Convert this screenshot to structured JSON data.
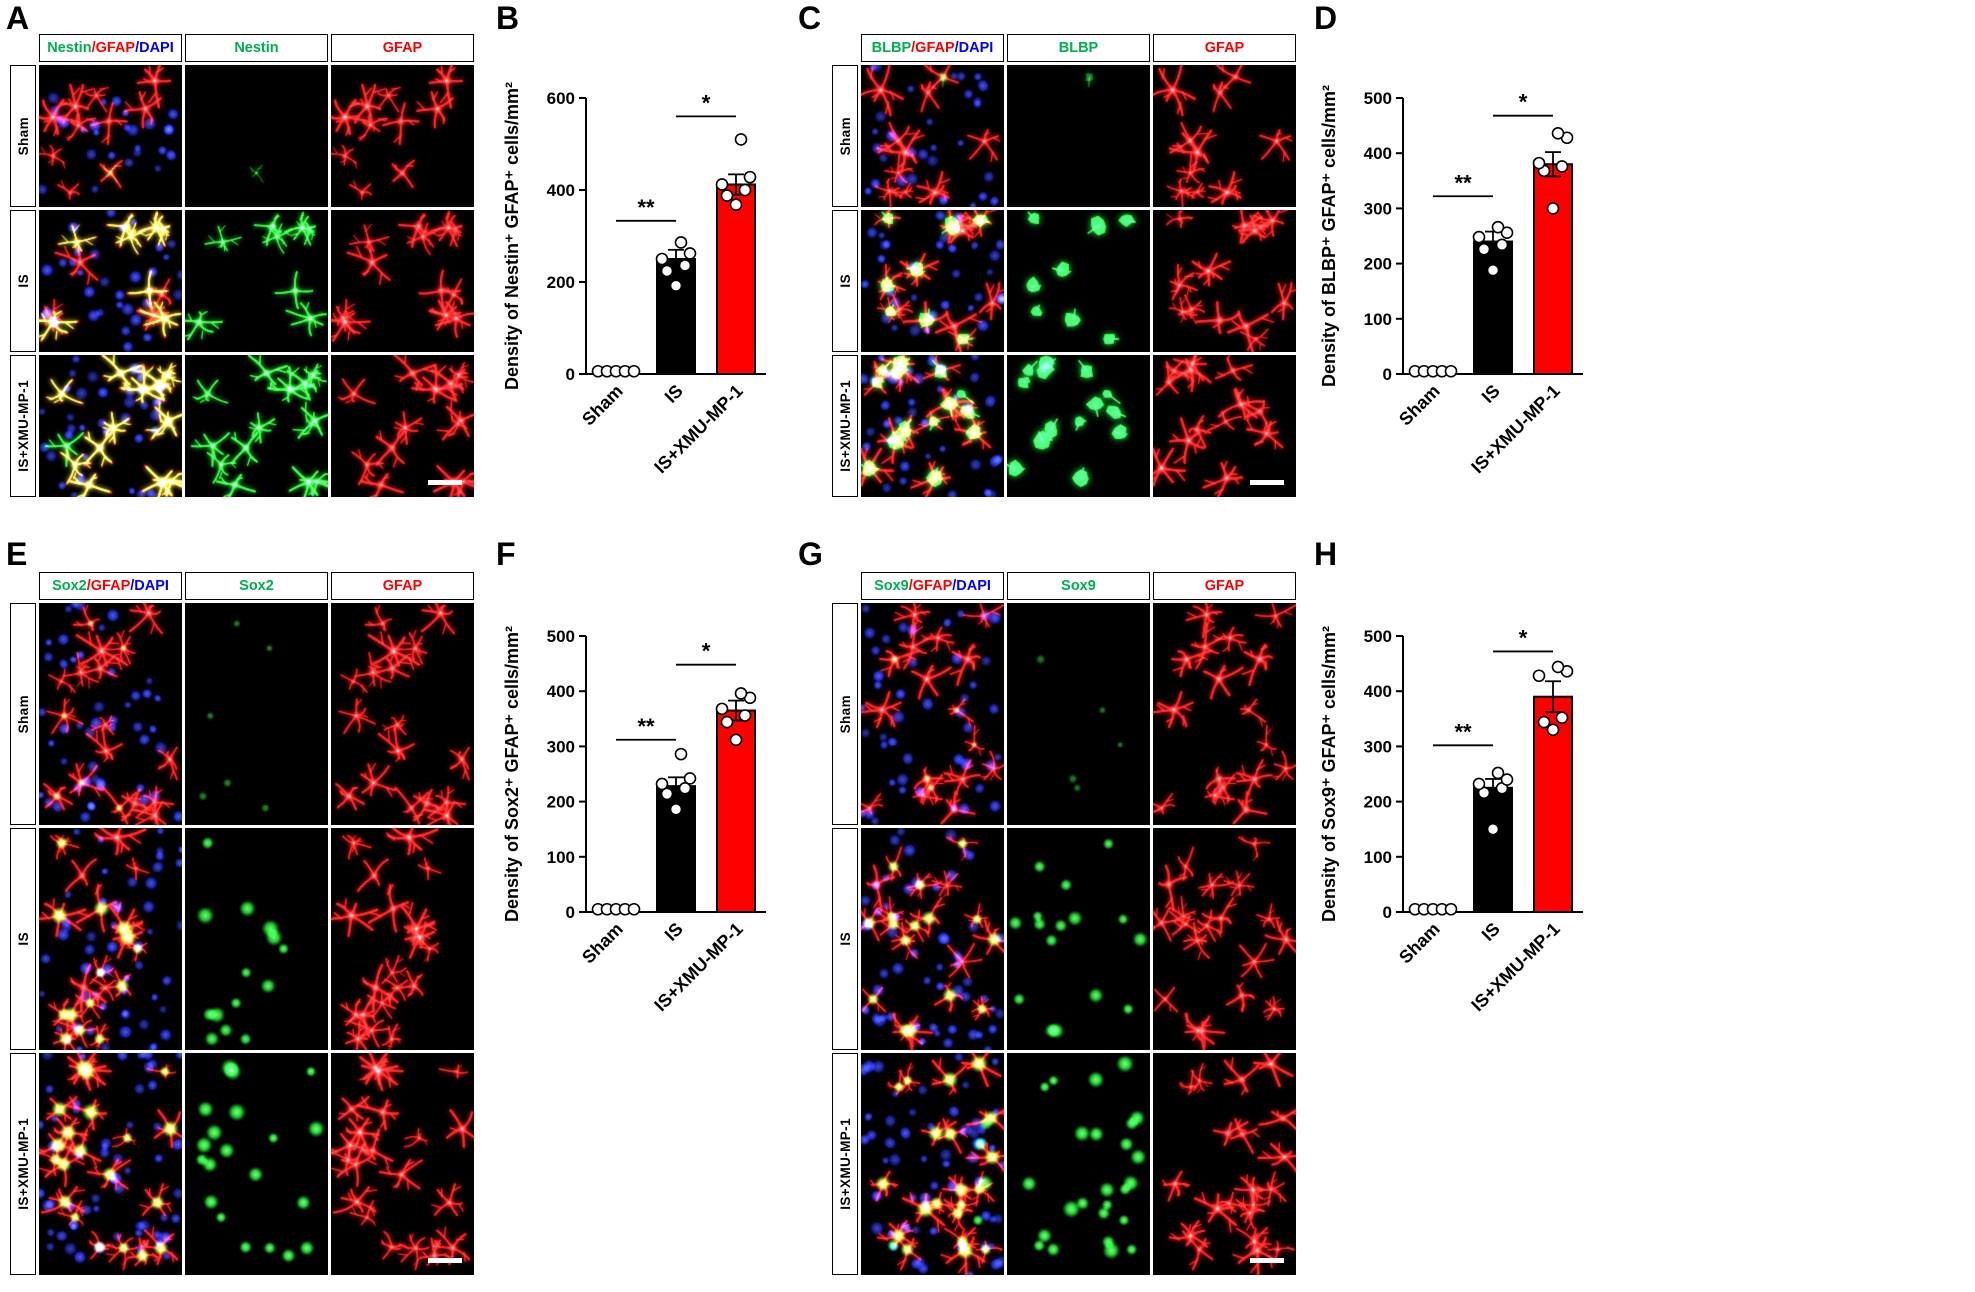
{
  "panels": [
    {
      "label": "A",
      "kind": "microscopy",
      "marker": "Nestin",
      "green_style": "stellate",
      "col_headers": [
        {
          "segments": [
            {
              "text": "Nestin",
              "color": "#00B050"
            },
            {
              "text": "/GFAP",
              "color": "#FF0000"
            },
            {
              "text": "/DAPI",
              "color": "#0000FF"
            }
          ]
        },
        {
          "segments": [
            {
              "text": "Nestin",
              "color": "#00B050"
            }
          ]
        },
        {
          "segments": [
            {
              "text": "GFAP",
              "color": "#FF0000"
            }
          ]
        }
      ],
      "row_labels": [
        "Sham",
        "IS",
        "IS+XMU-MP-1"
      ]
    },
    {
      "label": "B",
      "kind": "chart",
      "chart_index": 0
    },
    {
      "label": "C",
      "kind": "microscopy",
      "marker": "BLBP",
      "green_style": "blob",
      "col_headers": [
        {
          "segments": [
            {
              "text": "BLBP",
              "color": "#00B050"
            },
            {
              "text": "/GFAP",
              "color": "#FF0000"
            },
            {
              "text": "/DAPI",
              "color": "#0000FF"
            }
          ]
        },
        {
          "segments": [
            {
              "text": "BLBP",
              "color": "#00B050"
            }
          ]
        },
        {
          "segments": [
            {
              "text": "GFAP",
              "color": "#FF0000"
            }
          ]
        }
      ],
      "row_labels": [
        "Sham",
        "IS",
        "IS+XMU-MP-1"
      ]
    },
    {
      "label": "D",
      "kind": "chart",
      "chart_index": 1
    },
    {
      "label": "E",
      "kind": "microscopy",
      "marker": "Sox2",
      "green_style": "dot",
      "col_headers": [
        {
          "segments": [
            {
              "text": "Sox2",
              "color": "#00B050"
            },
            {
              "text": "/GFAP",
              "color": "#FF0000"
            },
            {
              "text": "/DAPI",
              "color": "#0000FF"
            }
          ]
        },
        {
          "segments": [
            {
              "text": "Sox2",
              "color": "#00B050"
            }
          ]
        },
        {
          "segments": [
            {
              "text": "GFAP",
              "color": "#FF0000"
            }
          ]
        }
      ],
      "row_labels": [
        "Sham",
        "IS",
        "IS+XMU-MP-1"
      ]
    },
    {
      "label": "F",
      "kind": "chart",
      "chart_index": 2
    },
    {
      "label": "G",
      "kind": "microscopy",
      "marker": "Sox9",
      "green_style": "dot",
      "col_headers": [
        {
          "segments": [
            {
              "text": "Sox9",
              "color": "#00B050"
            },
            {
              "text": "/GFAP",
              "color": "#FF0000"
            },
            {
              "text": "/DAPI",
              "color": "#0000FF"
            }
          ]
        },
        {
          "segments": [
            {
              "text": "Sox9",
              "color": "#00B050"
            }
          ]
        },
        {
          "segments": [
            {
              "text": "GFAP",
              "color": "#FF0000"
            }
          ]
        }
      ],
      "row_labels": [
        "Sham",
        "IS",
        "IS+XMU-MP-1"
      ]
    },
    {
      "label": "H",
      "kind": "chart",
      "chart_index": 3
    }
  ],
  "chart_data": [
    {
      "id": "B",
      "type": "bar",
      "categories": [
        "Sham",
        "IS",
        "IS+XMU-MP-1"
      ],
      "values": [
        8,
        250,
        412
      ],
      "errors": [
        3,
        20,
        22
      ],
      "points": [
        [
          6,
          6,
          6,
          6,
          6
        ],
        [
          192,
          224,
          236,
          250,
          262,
          286
        ],
        [
          368,
          388,
          400,
          412,
          428,
          510
        ]
      ],
      "bar_colors": [
        "#FFFFFF",
        "#000000",
        "#FF0000"
      ],
      "ylabel": "Density of Nestin⁺ GFAP⁺ cells/mm²",
      "ylim": [
        0,
        600
      ],
      "yticks": [
        0,
        200,
        400,
        600
      ],
      "significance": [
        {
          "a": 0,
          "b": 1,
          "label": "**",
          "y": 333
        },
        {
          "a": 1,
          "b": 2,
          "label": "*",
          "y": 560
        }
      ]
    },
    {
      "id": "D",
      "type": "bar",
      "categories": [
        "Sham",
        "IS",
        "IS+XMU-MP-1"
      ],
      "values": [
        6,
        240,
        380
      ],
      "errors": [
        2,
        18,
        22
      ],
      "points": [
        [
          5,
          5,
          5,
          5,
          5
        ],
        [
          188,
          226,
          234,
          248,
          256,
          266
        ],
        [
          300,
          368,
          376,
          382,
          428,
          436
        ]
      ],
      "bar_colors": [
        "#FFFFFF",
        "#000000",
        "#FF0000"
      ],
      "ylabel": "Density of BLBP⁺ GFAP⁺ cells/mm²",
      "ylim": [
        0,
        500
      ],
      "yticks": [
        0,
        100,
        200,
        300,
        400,
        500
      ],
      "significance": [
        {
          "a": 0,
          "b": 1,
          "label": "**",
          "y": 322
        },
        {
          "a": 1,
          "b": 2,
          "label": "*",
          "y": 468
        }
      ]
    },
    {
      "id": "F",
      "type": "bar",
      "categories": [
        "Sham",
        "IS",
        "IS+XMU-MP-1"
      ],
      "values": [
        6,
        228,
        365
      ],
      "errors": [
        2,
        16,
        18
      ],
      "points": [
        [
          5,
          5,
          5,
          5,
          5
        ],
        [
          186,
          214,
          224,
          232,
          242,
          286
        ],
        [
          312,
          344,
          356,
          368,
          388,
          396
        ]
      ],
      "bar_colors": [
        "#FFFFFF",
        "#000000",
        "#FF0000"
      ],
      "ylabel": "Density of Sox2⁺ GFAP⁺ cells/mm²",
      "ylim": [
        0,
        500
      ],
      "yticks": [
        0,
        100,
        200,
        300,
        400,
        500
      ],
      "significance": [
        {
          "a": 0,
          "b": 1,
          "label": "**",
          "y": 312
        },
        {
          "a": 1,
          "b": 2,
          "label": "*",
          "y": 448
        }
      ]
    },
    {
      "id": "H",
      "type": "bar",
      "categories": [
        "Sham",
        "IS",
        "IS+XMU-MP-1"
      ],
      "values": [
        6,
        225,
        390
      ],
      "errors": [
        2,
        16,
        28
      ],
      "points": [
        [
          5,
          5,
          5,
          5,
          5
        ],
        [
          150,
          216,
          224,
          232,
          240,
          252
        ],
        [
          330,
          344,
          352,
          428,
          436,
          444
        ]
      ],
      "bar_colors": [
        "#FFFFFF",
        "#000000",
        "#FF0000"
      ],
      "ylabel": "Density of Sox9⁺ GFAP⁺ cells/mm²",
      "ylim": [
        0,
        500
      ],
      "yticks": [
        0,
        100,
        200,
        300,
        400,
        500
      ],
      "significance": [
        {
          "a": 0,
          "b": 1,
          "label": "**",
          "y": 302
        },
        {
          "a": 1,
          "b": 2,
          "label": "*",
          "y": 472
        }
      ]
    }
  ],
  "colors": {
    "marker_green": "#00B050",
    "gfap_red": "#FF0000",
    "dapi_blue": "#0000FF"
  }
}
